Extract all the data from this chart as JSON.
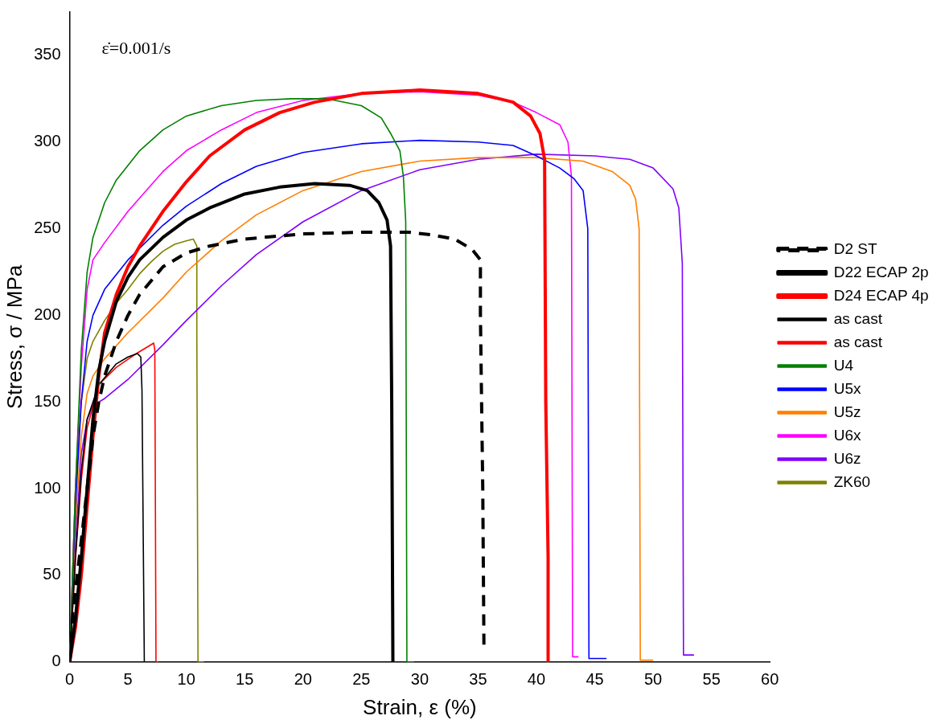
{
  "chart_data": {
    "type": "line",
    "xlabel": "Strain, ε (%)",
    "ylabel": "Stress, σ / MPa",
    "xlim": [
      0,
      60
    ],
    "xticks": [
      0,
      5,
      10,
      15,
      20,
      25,
      30,
      35,
      40,
      45,
      50,
      55,
      60
    ],
    "ylim": [
      0,
      375
    ],
    "yticks": [
      0,
      50,
      100,
      150,
      200,
      250,
      300,
      350
    ],
    "grid": false,
    "legend": "right",
    "marker": "none",
    "annotations": [
      "ε̇=0.001/s"
    ],
    "series": [
      {
        "name": "D2 ST",
        "color": "#000000",
        "line_style": "dashed",
        "x": [
          0,
          0.3,
          1,
          1.5,
          2,
          2.5,
          3,
          4,
          5,
          6,
          8,
          10,
          12,
          15,
          20,
          25,
          29,
          31,
          33,
          34.5,
          35.2,
          35.2,
          35.4,
          35.5
        ],
        "values": [
          0,
          30,
          70,
          100,
          130,
          150,
          165,
          185,
          200,
          212,
          228,
          236,
          240,
          244,
          247,
          248,
          248,
          246.5,
          244,
          238,
          232,
          200,
          100,
          10
        ]
      },
      {
        "name": "D22 ECAP 2p",
        "color": "#000000",
        "x": [
          0,
          0.5,
          1,
          1.5,
          2,
          2.5,
          3,
          4,
          5,
          6,
          8,
          10,
          12,
          15,
          18,
          21,
          24,
          25.5,
          26.5,
          27.2,
          27.5,
          27.6,
          27.7
        ],
        "values": [
          0,
          25,
          60,
          100,
          140,
          168,
          185,
          208,
          222,
          232,
          245,
          255,
          262,
          270,
          274,
          276,
          275,
          272,
          265,
          255,
          240,
          150,
          0
        ]
      },
      {
        "name": "D24 ECAP 4p",
        "color": "#ff0000",
        "x": [
          0,
          0.5,
          1,
          1.5,
          2,
          2.5,
          3,
          4,
          5,
          6,
          8,
          10,
          12,
          15,
          18,
          21,
          25,
          30,
          35,
          38,
          39.5,
          40.3,
          40.7,
          40.8,
          41,
          41
        ],
        "values": [
          0,
          20,
          50,
          90,
          130,
          165,
          190,
          212,
          228,
          240,
          260,
          277,
          292,
          307,
          317,
          323,
          328,
          330,
          328,
          323,
          315,
          305,
          290,
          150,
          60,
          0
        ]
      },
      {
        "name": "as cast",
        "color": "#000000",
        "x": [
          0,
          0.5,
          1,
          1.5,
          2.5,
          4,
          5,
          5.8,
          6.1,
          6.2,
          6.4,
          7
        ],
        "values": [
          0,
          60,
          110,
          140,
          160,
          172,
          176,
          178,
          176,
          157,
          0,
          0
        ]
      },
      {
        "name": "as cast",
        "color": "#ff0000",
        "x": [
          0,
          0.5,
          1,
          1.5,
          2.5,
          4,
          5.5,
          7.2,
          7.3,
          7.4,
          7.6
        ],
        "values": [
          0,
          60,
          105,
          135,
          160,
          170,
          177,
          184,
          180,
          0,
          0
        ]
      },
      {
        "name": "U4",
        "color": "#008000",
        "x": [
          0,
          0.5,
          1,
          1.5,
          2,
          3,
          4,
          6,
          8,
          10,
          13,
          16,
          19,
          22,
          25,
          26.7,
          27.5,
          28.3,
          28.6,
          28.8,
          28.9,
          29.5
        ],
        "values": [
          0,
          100,
          180,
          225,
          245,
          265,
          278,
          295,
          307,
          315,
          321,
          324,
          325,
          325,
          321,
          314,
          305,
          295,
          280,
          254,
          0,
          0
        ]
      },
      {
        "name": "U5x",
        "color": "#0000ff",
        "x": [
          0,
          0.5,
          1,
          1.5,
          2,
          3,
          5,
          8,
          10,
          13,
          16,
          20,
          25,
          30,
          35,
          38,
          40,
          42,
          43.2,
          44,
          44.4,
          44.5,
          46
        ],
        "values": [
          0,
          90,
          150,
          185,
          200,
          215,
          232,
          252,
          263,
          276,
          286,
          294,
          299,
          301,
          300,
          298,
          292,
          285,
          279,
          272,
          250,
          2,
          2
        ]
      },
      {
        "name": "U5z",
        "color": "#ff7f00",
        "x": [
          0,
          0.5,
          1,
          1.5,
          2,
          3,
          5,
          8,
          10,
          13,
          16,
          20,
          25,
          30,
          35,
          40,
          44,
          46.5,
          48,
          48.5,
          48.8,
          48.9,
          50
        ],
        "values": [
          0,
          80,
          130,
          155,
          165,
          175,
          190,
          210,
          225,
          243,
          258,
          272,
          283,
          289,
          291,
          291,
          289,
          283,
          275,
          267,
          250,
          1,
          1
        ]
      },
      {
        "name": "U6x",
        "color": "#ff00ff",
        "x": [
          0,
          0.5,
          1,
          1.5,
          2,
          3,
          5,
          8,
          10,
          13,
          16,
          20,
          25,
          30,
          35,
          38,
          40,
          42,
          42.7,
          43,
          43.1,
          43.6
        ],
        "values": [
          0,
          100,
          170,
          215,
          232,
          242,
          260,
          283,
          295,
          307,
          317,
          324,
          328,
          329,
          327,
          323,
          317,
          310,
          300,
          280,
          3,
          3
        ]
      },
      {
        "name": "U6z",
        "color": "#8000ff",
        "x": [
          0,
          0.5,
          1,
          1.5,
          2,
          3,
          5,
          8,
          10,
          13,
          16,
          20,
          25,
          30,
          35,
          40,
          45,
          48,
          50,
          51.7,
          52.2,
          52.5,
          52.6,
          53.5
        ],
        "values": [
          0,
          70,
          120,
          140,
          148,
          152,
          163,
          183,
          197,
          217,
          235,
          254,
          272,
          284,
          290,
          293,
          292,
          290,
          285,
          273,
          262,
          230,
          4,
          4
        ]
      },
      {
        "name": "ZK60",
        "color": "#808000",
        "x": [
          0,
          0.5,
          1,
          1.5,
          2,
          3,
          4,
          5,
          6,
          7,
          8,
          9,
          10,
          10.6,
          10.9,
          10.9,
          11,
          11.5
        ],
        "values": [
          0,
          100,
          150,
          175,
          185,
          197,
          207,
          215,
          224,
          231,
          237,
          241,
          243,
          244,
          240,
          190,
          0,
          0
        ]
      }
    ]
  }
}
